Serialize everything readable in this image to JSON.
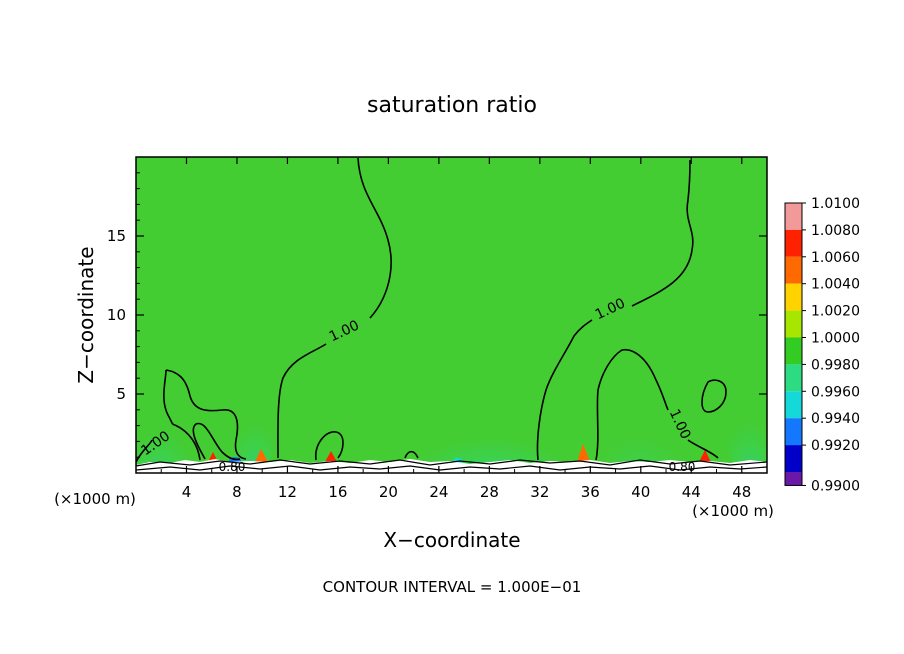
{
  "chart_data": {
    "type": "heatmap",
    "title": "saturation ratio",
    "xlabel": "X−coordinate",
    "ylabel": "Z−coordinate",
    "x_unit_left": "(×1000 m)",
    "x_unit_right": "(×1000 m)",
    "footer": "CONTOUR INTERVAL = 1.000E−01",
    "xlim": [
      0,
      50
    ],
    "ylim": [
      0,
      20
    ],
    "x_ticks": [
      4,
      8,
      12,
      16,
      20,
      24,
      28,
      32,
      36,
      40,
      44,
      48
    ],
    "y_ticks": [
      5,
      10,
      15
    ],
    "colorbar": {
      "levels": [
        "1.0100",
        "1.0080",
        "1.0060",
        "1.0040",
        "1.0020",
        "1.0000",
        "0.9980",
        "0.9960",
        "0.9940",
        "0.9920",
        "0.9900"
      ],
      "colors": [
        "#f29a9a",
        "#ff2200",
        "#ff6a00",
        "#ffd200",
        "#a6e600",
        "#33cc22",
        "#2ddc82",
        "#15d8d8",
        "#1478ff",
        "#0000c8",
        "#6a18a8"
      ]
    },
    "background_color": "#44cc33",
    "contour_labels": [
      "1.00",
      "1.00",
      "1.00",
      "1.00",
      "0.80",
      "0.80"
    ]
  }
}
